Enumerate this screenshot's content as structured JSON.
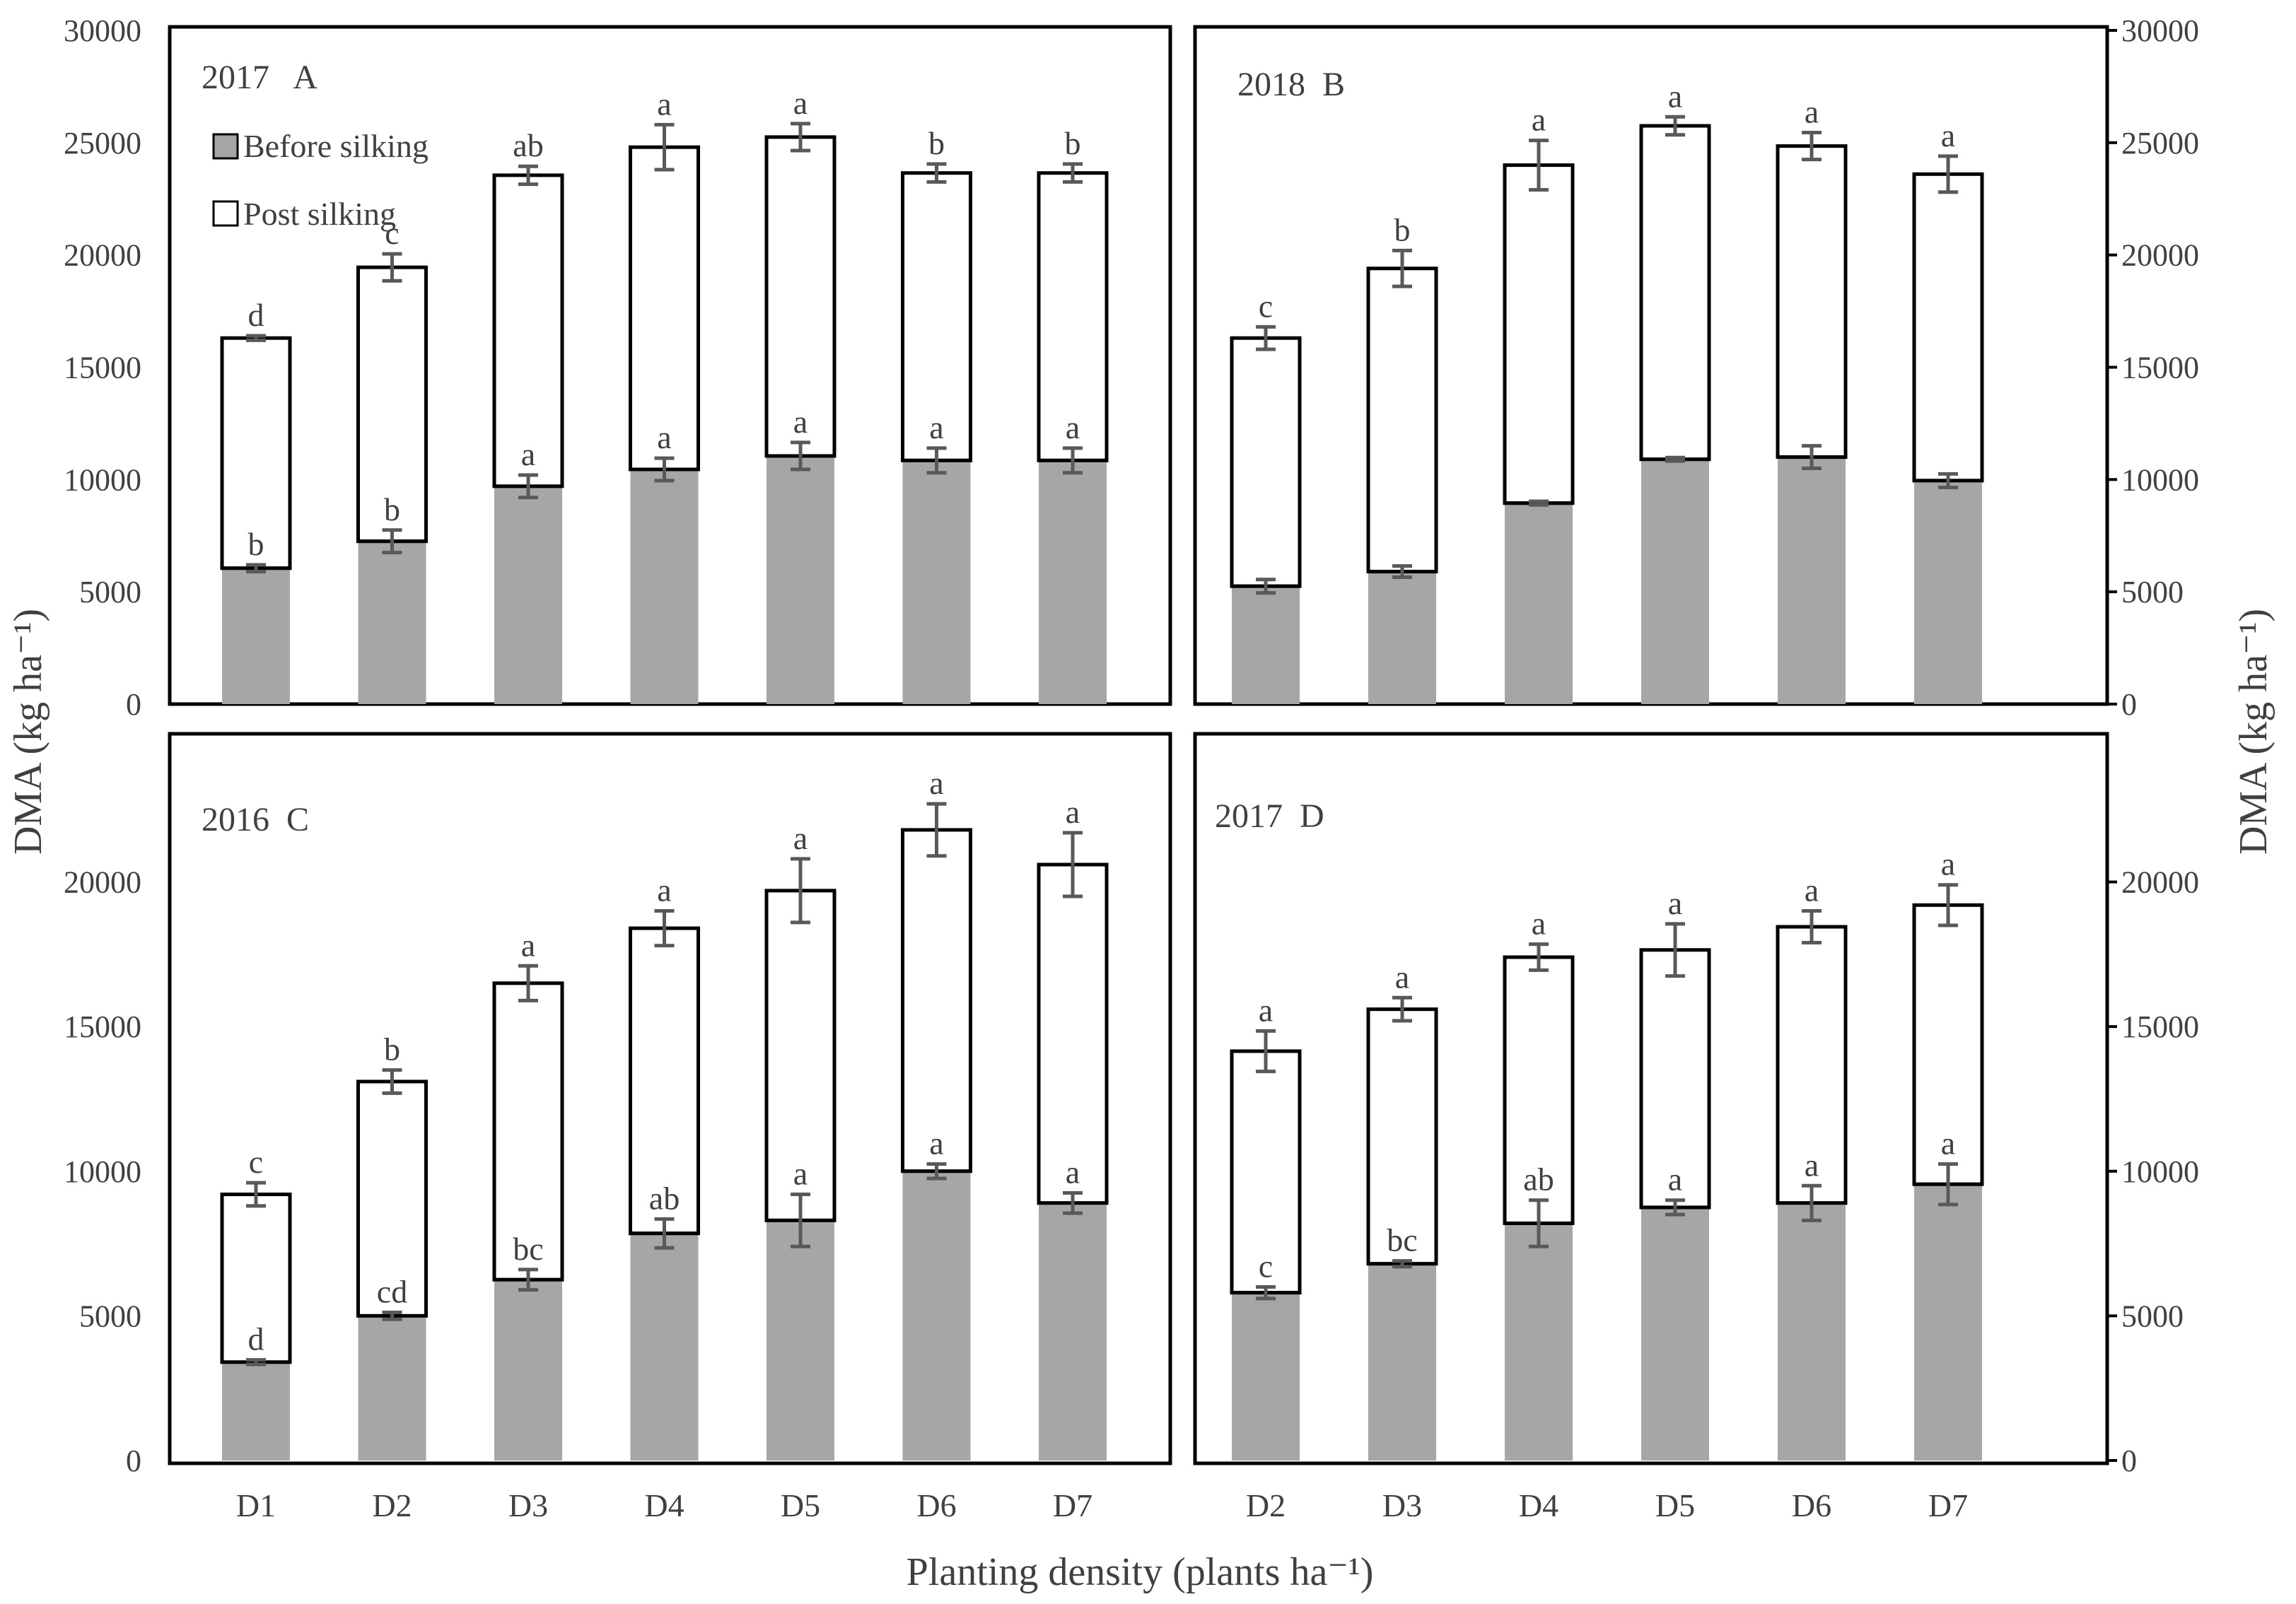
{
  "figure": {
    "ylabel_left": "DMA (kg ha⁻¹)",
    "ylabel_right": "DMA (kg ha⁻¹)",
    "xlabel": "Planting density (plants ha⁻¹)"
  },
  "legend": {
    "before": "Before silking",
    "post": "Post silking"
  },
  "colors": {
    "before": "#a6a6a6",
    "post": "#ffffff",
    "outline": "#000000",
    "errorbar": "#595959",
    "text": "#404040"
  },
  "chart_data": [
    {
      "id": "A",
      "type": "bar",
      "stacked": true,
      "title": "2017   A",
      "categories": [
        "D1",
        "D2",
        "D3",
        "D4",
        "D5",
        "D6",
        "D7"
      ],
      "ylim": [
        0,
        30000
      ],
      "yticks": [
        "0",
        "5000",
        "10000",
        "15000",
        "20000",
        "25000",
        "30000"
      ],
      "series": [
        {
          "name": "Before silking",
          "values": [
            6050,
            7250,
            9700,
            10450,
            11050,
            10850,
            10850
          ],
          "errors": [
            150,
            500,
            500,
            500,
            600,
            550,
            550
          ],
          "letters": [
            "b",
            "b",
            "a",
            "a",
            "a",
            "a",
            "a"
          ]
        },
        {
          "name": "Post silking",
          "totals": [
            16300,
            19450,
            23550,
            24800,
            25250,
            23650,
            23650
          ],
          "errors": [
            100,
            600,
            400,
            1000,
            600,
            400,
            400
          ],
          "letters": [
            "d",
            "c",
            "ab",
            "a",
            "a",
            "b",
            "b"
          ]
        }
      ]
    },
    {
      "id": "B",
      "type": "bar",
      "stacked": true,
      "title": "2018  B",
      "categories": [
        "D2",
        "D3",
        "D4",
        "D5",
        "D6",
        "D7"
      ],
      "ylim": [
        0,
        30000
      ],
      "yticks": [
        "0",
        "5000",
        "10000",
        "15000",
        "20000",
        "25000",
        "30000"
      ],
      "series": [
        {
          "name": "Before silking",
          "values": [
            5250,
            5900,
            8950,
            10900,
            11000,
            9950
          ],
          "errors": [
            300,
            250,
            80,
            80,
            500,
            300
          ],
          "letters": [
            "",
            "",
            "",
            "",
            "",
            ""
          ]
        },
        {
          "name": "Post silking",
          "totals": [
            16300,
            19400,
            24000,
            25750,
            24850,
            23600
          ],
          "errors": [
            500,
            800,
            1100,
            400,
            600,
            800
          ],
          "letters": [
            "c",
            "b",
            "a",
            "a",
            "a",
            "a"
          ]
        }
      ]
    },
    {
      "id": "C",
      "type": "bar",
      "stacked": true,
      "title": "2016  C",
      "categories": [
        "D1",
        "D2",
        "D3",
        "D4",
        "D5",
        "D6",
        "D7"
      ],
      "ylim": [
        0,
        25000
      ],
      "yticks": [
        "0",
        "5000",
        "10000",
        "15000",
        "20000"
      ],
      "series": [
        {
          "name": "Before silking",
          "values": [
            3400,
            5000,
            6250,
            7850,
            8300,
            10000,
            8900
          ],
          "errors": [
            80,
            120,
            350,
            500,
            900,
            250,
            350
          ],
          "letters": [
            "d",
            "cd",
            "bc",
            "ab",
            "a",
            "a",
            "a"
          ]
        },
        {
          "name": "Post silking",
          "totals": [
            9200,
            13100,
            16500,
            18400,
            19700,
            21800,
            20600
          ],
          "errors": [
            400,
            400,
            600,
            600,
            1100,
            900,
            1100
          ],
          "letters": [
            "c",
            "b",
            "a",
            "a",
            "a",
            "a",
            "a"
          ]
        }
      ]
    },
    {
      "id": "D",
      "type": "bar",
      "stacked": true,
      "title": "2017  D",
      "categories": [
        "D2",
        "D3",
        "D4",
        "D5",
        "D6",
        "D7"
      ],
      "ylim": [
        0,
        25000
      ],
      "yticks": [
        "0",
        "5000",
        "10000",
        "15000",
        "20000"
      ],
      "series": [
        {
          "name": "Before silking",
          "values": [
            5800,
            6800,
            8200,
            8750,
            8900,
            9550
          ],
          "errors": [
            200,
            100,
            800,
            250,
            600,
            700
          ],
          "letters": [
            "c",
            "bc",
            "ab",
            "a",
            "a",
            "a"
          ]
        },
        {
          "name": "Post silking",
          "totals": [
            14150,
            15600,
            17400,
            17650,
            18450,
            19200
          ],
          "errors": [
            700,
            400,
            450,
            900,
            550,
            700
          ],
          "letters": [
            "a",
            "a",
            "a",
            "a",
            "a",
            "a"
          ]
        }
      ]
    }
  ]
}
